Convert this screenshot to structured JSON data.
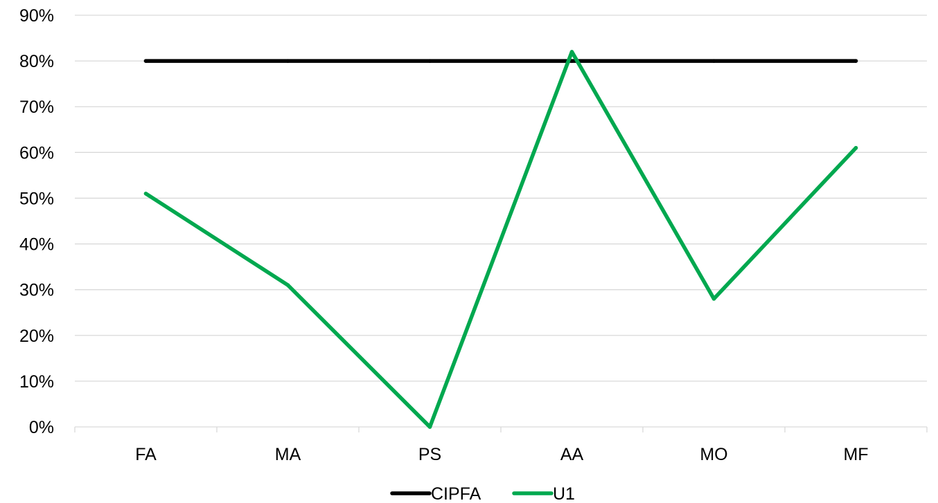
{
  "chart_data": {
    "type": "line",
    "categories": [
      "FA",
      "MA",
      "PS",
      "AA",
      "MO",
      "MF"
    ],
    "series": [
      {
        "name": "CIPFA",
        "values": [
          0.8,
          0.8,
          0.8,
          0.8,
          0.8,
          0.8
        ],
        "color": "#000000"
      },
      {
        "name": "U1",
        "values": [
          0.51,
          0.31,
          0.0,
          0.82,
          0.28,
          0.61
        ],
        "color": "#00a84f"
      }
    ],
    "ylim": [
      0,
      0.9
    ],
    "yticks": [
      "0%",
      "10%",
      "20%",
      "30%",
      "40%",
      "50%",
      "60%",
      "70%",
      "80%",
      "90%"
    ],
    "grid": true,
    "legend_position": "bottom-center",
    "gridline_color": "#d9d9d9"
  }
}
